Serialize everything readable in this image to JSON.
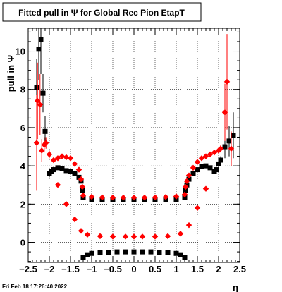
{
  "chart_data": {
    "type": "scatter",
    "title": "Fitted pull in  Ψ  for Global Rec Pion EtapT",
    "xlabel": "η",
    "ylabel": "pull in Ψ",
    "xlim": [
      -2.5,
      2.5
    ],
    "ylim": [
      -1.05,
      11.2
    ],
    "x_ticks": [
      -2.5,
      -2,
      -1.5,
      -1,
      -0.5,
      0,
      0.5,
      1,
      1.5,
      2,
      2.5
    ],
    "x_tick_labels": [
      "−2.5",
      "−2",
      "−1.5",
      "−1",
      "−0.5",
      "0",
      "0.5",
      "1",
      "1.5",
      "2",
      "2.5"
    ],
    "y_ticks": [
      0,
      2,
      4,
      6,
      8,
      10
    ],
    "y_tick_labels": [
      "0",
      "2",
      "4",
      "6",
      "8",
      "10"
    ],
    "grid": true,
    "series": [
      {
        "color": "#000000",
        "marker": "square",
        "points": [
          [
            -2.3,
            8.1,
            1.5
          ],
          [
            -2.25,
            10.1,
            1.6
          ],
          [
            -2.2,
            10.6,
            1.8
          ],
          [
            -2.15,
            7.8,
            1.0
          ],
          [
            -2.1,
            5.8,
            0.8
          ],
          [
            -2.0,
            3.6,
            0.2
          ],
          [
            -1.95,
            3.7,
            0.15
          ],
          [
            -1.9,
            3.8,
            0.15
          ],
          [
            -1.8,
            3.9,
            0.1
          ],
          [
            -1.7,
            3.85,
            0.1
          ],
          [
            -1.6,
            3.75,
            0.1
          ],
          [
            -1.5,
            3.7,
            0.1
          ],
          [
            -1.4,
            3.6,
            0.1
          ],
          [
            -1.3,
            3.4,
            0.1
          ],
          [
            -1.25,
            3.2,
            0.1
          ],
          [
            -1.22,
            2.7,
            0.1
          ],
          [
            -1.2,
            2.35,
            0.05
          ],
          [
            -1.0,
            2.25,
            0.05
          ],
          [
            -0.75,
            2.25,
            0.05
          ],
          [
            -0.5,
            2.22,
            0.05
          ],
          [
            -0.25,
            2.22,
            0.05
          ],
          [
            0.0,
            2.22,
            0.05
          ],
          [
            0.25,
            2.22,
            0.05
          ],
          [
            0.5,
            2.24,
            0.05
          ],
          [
            0.75,
            2.25,
            0.05
          ],
          [
            1.0,
            2.25,
            0.05
          ],
          [
            1.2,
            2.35,
            0.05
          ],
          [
            1.22,
            2.7,
            0.1
          ],
          [
            1.25,
            3.0,
            0.1
          ],
          [
            1.3,
            3.3,
            0.1
          ],
          [
            1.4,
            3.6,
            0.1
          ],
          [
            1.5,
            3.8,
            0.1
          ],
          [
            1.6,
            3.95,
            0.1
          ],
          [
            1.7,
            4.0,
            0.1
          ],
          [
            1.8,
            3.9,
            0.1
          ],
          [
            1.9,
            3.7,
            0.1
          ],
          [
            1.95,
            3.8,
            0.15
          ],
          [
            2.0,
            4.1,
            0.2
          ],
          [
            2.05,
            4.3,
            0.2
          ],
          [
            2.15,
            5.0,
            0.6
          ],
          [
            2.25,
            5.3,
            0.8
          ],
          [
            2.35,
            5.6,
            1.2
          ],
          [
            -1.2,
            -0.8,
            0.03
          ],
          [
            -1.1,
            -0.65,
            0.03
          ],
          [
            -1.0,
            -0.58,
            0.03
          ],
          [
            -0.8,
            -0.55,
            0.03
          ],
          [
            -0.6,
            -0.52,
            0.03
          ],
          [
            -0.4,
            -0.5,
            0.03
          ],
          [
            -0.2,
            -0.5,
            0.03
          ],
          [
            0.0,
            -0.5,
            0.03
          ],
          [
            0.2,
            -0.5,
            0.03
          ],
          [
            0.4,
            -0.5,
            0.03
          ],
          [
            0.6,
            -0.52,
            0.03
          ],
          [
            0.8,
            -0.55,
            0.03
          ],
          [
            1.0,
            -0.58,
            0.03
          ],
          [
            1.1,
            -0.65,
            0.03
          ],
          [
            1.2,
            -0.8,
            0.03
          ]
        ]
      },
      {
        "color": "#ff0000",
        "marker": "diamond",
        "points": [
          [
            -2.3,
            5.2,
            2.5
          ],
          [
            -2.28,
            7.4,
            2.0
          ],
          [
            -2.22,
            7.2,
            1.6
          ],
          [
            -2.18,
            4.8,
            0.6
          ],
          [
            -2.12,
            5.1,
            0.4
          ],
          [
            -2.08,
            5.2,
            0.3
          ],
          [
            -2.0,
            4.6,
            0.2
          ],
          [
            -1.9,
            4.3,
            0.1
          ],
          [
            -1.8,
            4.4,
            0.1
          ],
          [
            -1.7,
            4.5,
            0.1
          ],
          [
            -1.6,
            4.45,
            0.1
          ],
          [
            -1.5,
            4.4,
            0.1
          ],
          [
            -1.4,
            4.1,
            0.1
          ],
          [
            -1.3,
            3.8,
            0.1
          ],
          [
            -1.25,
            3.3,
            0.1
          ],
          [
            -1.22,
            2.9,
            0.1
          ],
          [
            -1.2,
            2.45,
            0.05
          ],
          [
            -1.0,
            2.38,
            0.05
          ],
          [
            -0.75,
            2.35,
            0.05
          ],
          [
            -0.5,
            2.34,
            0.05
          ],
          [
            -0.25,
            2.34,
            0.05
          ],
          [
            0.0,
            2.34,
            0.05
          ],
          [
            0.25,
            2.34,
            0.05
          ],
          [
            0.5,
            2.35,
            0.05
          ],
          [
            0.75,
            2.37,
            0.05
          ],
          [
            1.0,
            2.4,
            0.05
          ],
          [
            1.2,
            2.5,
            0.05
          ],
          [
            1.22,
            2.9,
            0.1
          ],
          [
            1.25,
            3.2,
            0.1
          ],
          [
            1.3,
            3.5,
            0.1
          ],
          [
            1.4,
            3.9,
            0.1
          ],
          [
            1.5,
            4.2,
            0.1
          ],
          [
            1.6,
            4.4,
            0.1
          ],
          [
            1.7,
            4.5,
            0.1
          ],
          [
            1.8,
            4.6,
            0.1
          ],
          [
            1.9,
            4.7,
            0.1
          ],
          [
            2.0,
            4.8,
            0.15
          ],
          [
            2.05,
            4.9,
            0.2
          ],
          [
            2.15,
            6.8,
            1.5
          ],
          [
            2.2,
            8.4,
            2.5
          ],
          [
            2.3,
            4.9,
            0.9
          ],
          [
            -1.8,
            3.0,
            0.05
          ],
          [
            -1.6,
            2.0,
            0.05
          ],
          [
            -1.4,
            1.2,
            0.05
          ],
          [
            -1.25,
            0.6,
            0.05
          ],
          [
            -1.1,
            0.4,
            0.05
          ],
          [
            -0.8,
            0.32,
            0.03
          ],
          [
            -0.5,
            0.3,
            0.03
          ],
          [
            -0.2,
            0.3,
            0.03
          ],
          [
            0.0,
            0.3,
            0.03
          ],
          [
            0.2,
            0.3,
            0.03
          ],
          [
            0.5,
            0.3,
            0.03
          ],
          [
            0.8,
            0.32,
            0.03
          ],
          [
            1.1,
            0.45,
            0.05
          ],
          [
            1.3,
            0.9,
            0.05
          ],
          [
            1.5,
            1.8,
            0.05
          ],
          [
            1.7,
            2.8,
            0.05
          ]
        ]
      }
    ]
  },
  "footer": {
    "datestamp": "Fri Feb 18 17:26:40 2022"
  }
}
